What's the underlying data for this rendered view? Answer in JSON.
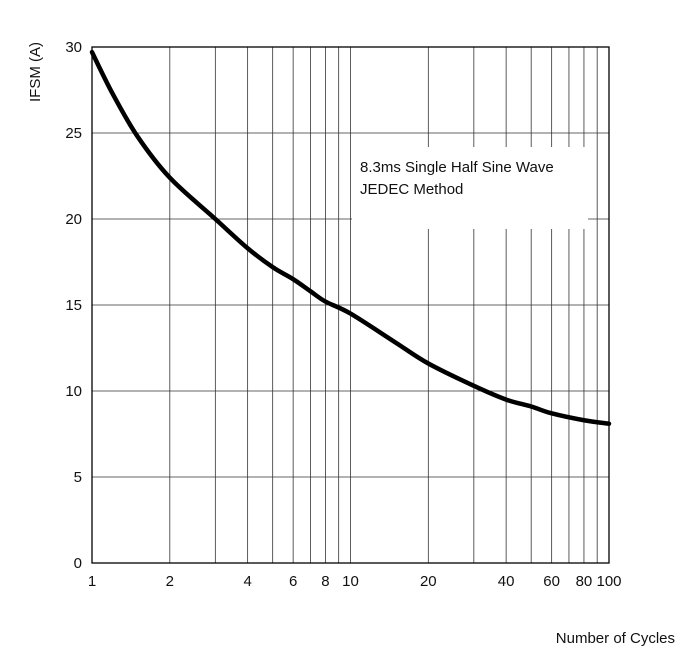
{
  "chart_data": {
    "type": "line",
    "title": "",
    "xlabel": "Number of Cycles",
    "ylabel": "IFSM  (A)",
    "x_scale": "log",
    "xlim": [
      1,
      100
    ],
    "ylim": [
      0,
      30
    ],
    "grid": true,
    "x_ticks": [
      {
        "value": 1,
        "label": "1"
      },
      {
        "value": 2,
        "label": "2"
      },
      {
        "value": 4,
        "label": "4"
      },
      {
        "value": 6,
        "label": "6"
      },
      {
        "value": 8,
        "label": "8"
      },
      {
        "value": 10,
        "label": "10"
      },
      {
        "value": 20,
        "label": "20"
      },
      {
        "value": 40,
        "label": "40"
      },
      {
        "value": 60,
        "label": "60"
      },
      {
        "value": 80,
        "label": "80"
      },
      {
        "value": 100,
        "label": "100"
      }
    ],
    "y_ticks": [
      {
        "value": 0,
        "label": "0"
      },
      {
        "value": 5,
        "label": "5"
      },
      {
        "value": 10,
        "label": "10"
      },
      {
        "value": 15,
        "label": "15"
      },
      {
        "value": 20,
        "label": "20"
      },
      {
        "value": 25,
        "label": "25"
      },
      {
        "value": 30,
        "label": "30"
      }
    ],
    "annotation": [
      "8.3ms Single Half Sine Wave",
      "JEDEC Method"
    ],
    "series": [
      {
        "x": [
          1,
          1.2,
          1.5,
          2,
          3,
          4,
          5,
          6,
          7,
          8,
          10,
          15,
          20,
          30,
          40,
          50,
          60,
          80,
          100
        ],
        "y": [
          29.7,
          27.3,
          24.8,
          22.4,
          20.0,
          18.3,
          17.2,
          16.5,
          15.8,
          15.2,
          14.5,
          12.8,
          11.6,
          10.3,
          9.5,
          9.1,
          8.7,
          8.3,
          8.1
        ]
      }
    ]
  }
}
